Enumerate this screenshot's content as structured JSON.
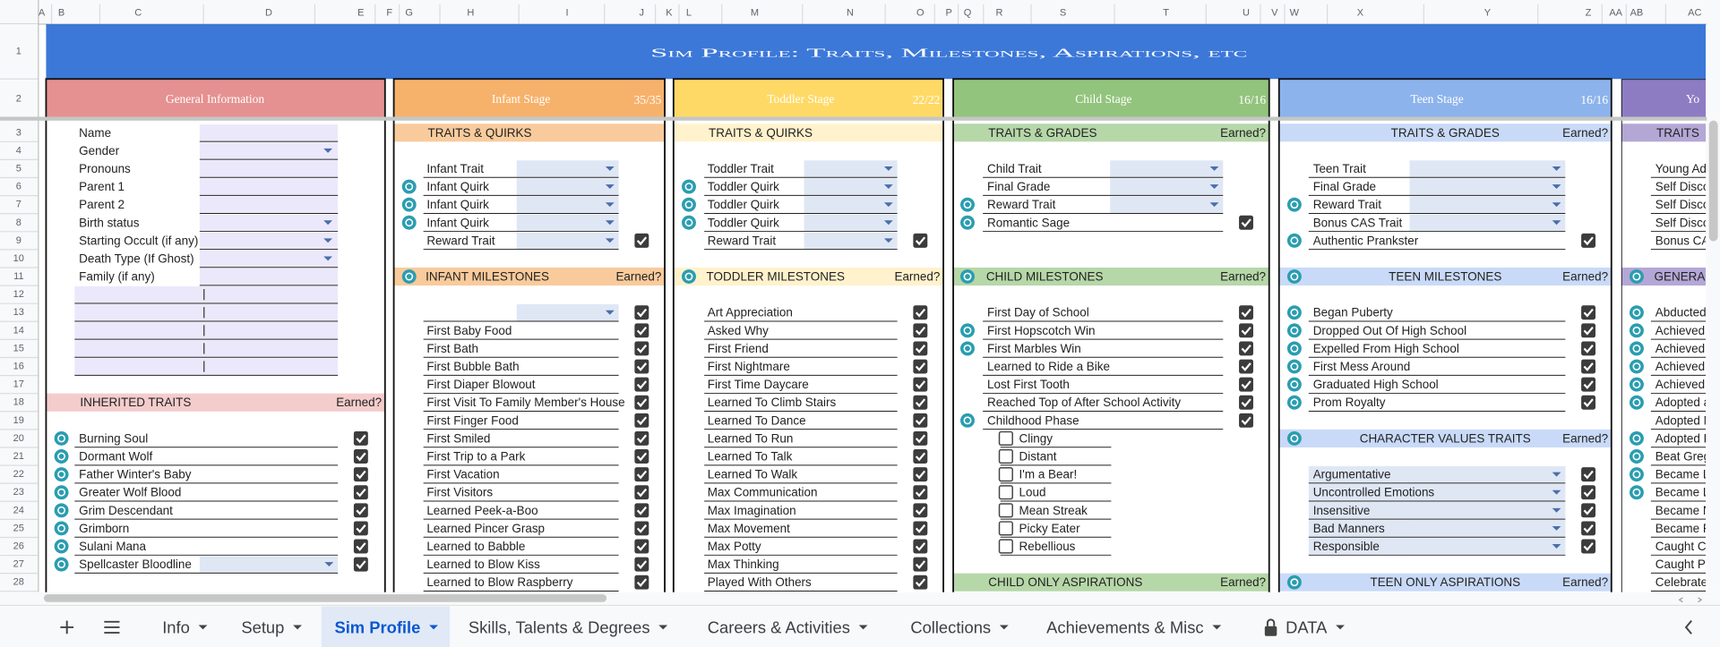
{
  "column_headers": [
    "A",
    "B",
    "C",
    "D",
    "E",
    "F",
    "G",
    "H",
    "I",
    "J",
    "K",
    "L",
    "M",
    "N",
    "O",
    "P",
    "Q",
    "R",
    "S",
    "T",
    "U",
    "V",
    "W",
    "X",
    "Y",
    "Z",
    "AA",
    "AB",
    "AC"
  ],
  "row_numbers": [
    1,
    2,
    3,
    4,
    5,
    6,
    7,
    8,
    9,
    10,
    11,
    12,
    13,
    14,
    15,
    16,
    17,
    18,
    19,
    20,
    21,
    22,
    23,
    24,
    25,
    26,
    27,
    28
  ],
  "title": "Sim Profile: Traits, Milestones, Aspirations, etc",
  "title_color": "#3c78d8",
  "general": {
    "title": "General Information",
    "color": "#e69191",
    "light_color": "#f4cccc",
    "fields": [
      {
        "label": "Name"
      },
      {
        "label": "Gender",
        "dropdown": true
      },
      {
        "label": "Pronouns"
      },
      {
        "label": "Parent 1"
      },
      {
        "label": "Parent 2"
      },
      {
        "label": "Birth status",
        "dropdown": true
      },
      {
        "label": "Starting Occult (if any)",
        "dropdown": true
      },
      {
        "label": "Death Type (If Ghost)",
        "dropdown": true
      },
      {
        "label": "Family (if any)"
      }
    ],
    "inherited": {
      "header": "INHERITED TRAITS",
      "earned": "Earned?",
      "items": [
        {
          "label": "Burning Soul",
          "icon": true,
          "checked": true
        },
        {
          "label": "Dormant Wolf",
          "icon": true,
          "checked": true
        },
        {
          "label": "Father Winter's Baby",
          "icon": true,
          "checked": true
        },
        {
          "label": "Greater Wolf Blood",
          "icon": true,
          "checked": true
        },
        {
          "label": "Grim Descendant",
          "icon": true,
          "checked": true
        },
        {
          "label": "Grimborn",
          "icon": true,
          "checked": true
        },
        {
          "label": "Sulani Mana",
          "icon": true,
          "checked": true
        },
        {
          "label": "Spellcaster Bloodline",
          "icon": true,
          "dropdown": true,
          "checked": true
        }
      ]
    }
  },
  "stages": [
    {
      "title": "Infant Stage",
      "count": "35/35",
      "color": "#f6b26b",
      "light_color": "#f9cb9c",
      "traits": {
        "header": "TRAITS & QUIRKS",
        "items": [
          {
            "label": "Infant Trait",
            "dropdown": true
          },
          {
            "label": "Infant Quirk",
            "icon": true,
            "dropdown": true
          },
          {
            "label": "Infant Quirk",
            "icon": true,
            "dropdown": true
          },
          {
            "label": "Infant Quirk",
            "icon": true,
            "dropdown": true
          },
          {
            "label": "Reward Trait",
            "dropdown": true,
            "checked": true
          }
        ]
      },
      "milestones": {
        "header": "INFANT MILESTONES",
        "earned": "Earned?",
        "icon": true,
        "items": [
          {
            "dropdown": true,
            "checked": true
          },
          {
            "label": "First Baby Food",
            "checked": true
          },
          {
            "label": "First Bath",
            "checked": true
          },
          {
            "label": "First Bubble Bath",
            "checked": true
          },
          {
            "label": "First Diaper Blowout",
            "checked": true
          },
          {
            "label": "First Visit To Family Member's House",
            "checked": true
          },
          {
            "label": "First Finger Food",
            "checked": true
          },
          {
            "label": "First Smiled",
            "checked": true
          },
          {
            "label": "First Trip to a Park",
            "checked": true
          },
          {
            "label": "First Vacation",
            "checked": true
          },
          {
            "label": "First Visitors",
            "checked": true
          },
          {
            "label": "Learned Peek-a-Boo",
            "checked": true
          },
          {
            "label": "Learned Pincer Grasp",
            "checked": true
          },
          {
            "label": "Learned to Babble",
            "checked": true
          },
          {
            "label": "Learned to Blow Kiss",
            "checked": true
          },
          {
            "label": "Learned to Blow Raspberry",
            "checked": true
          }
        ]
      }
    },
    {
      "title": "Toddler Stage",
      "count": "22/22",
      "color": "#ffd966",
      "light_color": "#fff2cc",
      "traits": {
        "header": "TRAITS & QUIRKS",
        "items": [
          {
            "label": "Toddler Trait",
            "dropdown": true
          },
          {
            "label": "Toddler Quirk",
            "icon": true,
            "dropdown": true
          },
          {
            "label": "Toddler Quirk",
            "icon": true,
            "dropdown": true
          },
          {
            "label": "Toddler Quirk",
            "icon": true,
            "dropdown": true
          },
          {
            "label": "Reward Trait",
            "dropdown": true,
            "checked": true
          }
        ]
      },
      "milestones": {
        "header": "TODDLER MILESTONES",
        "earned": "Earned?",
        "icon": true,
        "items": [
          {
            "label": "Art Appreciation",
            "checked": true
          },
          {
            "label": "Asked Why",
            "checked": true
          },
          {
            "label": "First Friend",
            "checked": true
          },
          {
            "label": "First Nightmare",
            "checked": true
          },
          {
            "label": "First Time Daycare",
            "checked": true
          },
          {
            "label": "Learned To Climb Stairs",
            "checked": true
          },
          {
            "label": "Learned To Dance",
            "checked": true
          },
          {
            "label": "Learned To Run",
            "checked": true
          },
          {
            "label": "Learned To Talk",
            "checked": true
          },
          {
            "label": "Learned To Walk",
            "checked": true
          },
          {
            "label": "Max Communication",
            "checked": true
          },
          {
            "label": "Max Imagination",
            "checked": true
          },
          {
            "label": "Max Movement",
            "checked": true
          },
          {
            "label": "Max Potty",
            "checked": true
          },
          {
            "label": "Max Thinking",
            "checked": true
          },
          {
            "label": "Played With Others",
            "checked": true
          }
        ]
      }
    },
    {
      "title": "Child Stage",
      "count": "16/16",
      "color": "#93c47d",
      "light_color": "#b6d7a8",
      "traits": {
        "header": "TRAITS & GRADES",
        "earned": "Earned?",
        "items": [
          {
            "label": "Child Trait",
            "dropdown": true
          },
          {
            "label": "Final Grade",
            "dropdown": true
          },
          {
            "label": "Reward Trait",
            "icon": true,
            "dropdown": true
          },
          {
            "label": "Romantic Sage",
            "icon": true,
            "checked": true
          }
        ]
      },
      "milestones": {
        "header": "CHILD MILESTONES",
        "earned": "Earned?",
        "icon": true,
        "items": [
          {
            "label": "First Day of School",
            "checked": true
          },
          {
            "label": "First Hopscotch Win",
            "icon": true,
            "checked": true
          },
          {
            "label": "First Marbles Win",
            "icon": true,
            "checked": true
          },
          {
            "label": "Learned to Ride a Bike",
            "checked": true
          },
          {
            "label": "Lost First Tooth",
            "checked": true
          },
          {
            "label": "Reached Top of After School Activity",
            "checked": true
          },
          {
            "label": "Childhood Phase",
            "icon": true,
            "checked": true
          }
        ]
      },
      "phases": {
        "items": [
          {
            "label": "Clingy",
            "checked": false
          },
          {
            "label": "Distant",
            "checked": false
          },
          {
            "label": "I'm a Bear!",
            "checked": false
          },
          {
            "label": "Loud",
            "checked": false
          },
          {
            "label": "Mean Streak",
            "checked": false
          },
          {
            "label": "Picky Eater",
            "checked": false
          },
          {
            "label": "Rebellious",
            "checked": false
          }
        ]
      },
      "aspirations": {
        "header": "CHILD ONLY ASPIRATIONS",
        "earned": "Earned?"
      }
    },
    {
      "title": "Teen Stage",
      "count": "16/16",
      "color": "#8db3ec",
      "light_color": "#c9daf8",
      "traits": {
        "header": "TRAITS & GRADES",
        "earned": "Earned?",
        "items": [
          {
            "label": "Teen Trait",
            "dropdown": true
          },
          {
            "label": "Final Grade",
            "dropdown": true
          },
          {
            "label": "Reward Trait",
            "icon": true,
            "dropdown": true
          },
          {
            "label": "Bonus CAS Trait",
            "dropdown": true
          },
          {
            "label": "Authentic Prankster",
            "icon": true,
            "checked": true
          }
        ]
      },
      "milestones": {
        "header": "TEEN MILESTONES",
        "earned": "Earned?",
        "icon": true,
        "items": [
          {
            "label": "Began Puberty",
            "icon": true,
            "checked": true
          },
          {
            "label": "Dropped Out Of High School",
            "icon": true,
            "checked": true
          },
          {
            "label": "Expelled From High School",
            "icon": true,
            "checked": true
          },
          {
            "label": "First Mess Around",
            "icon": true,
            "checked": true
          },
          {
            "label": "Graduated High School",
            "icon": true,
            "checked": true
          },
          {
            "label": "Prom Royalty",
            "icon": true,
            "checked": true
          }
        ]
      },
      "values": {
        "header": "CHARACTER VALUES TRAITS",
        "earned": "Earned?",
        "icon": true,
        "items": [
          {
            "label": "Argumentative",
            "dropdown": true,
            "filled": true,
            "checked": true
          },
          {
            "label": "Uncontrolled Emotions",
            "dropdown": true,
            "filled": true,
            "checked": true
          },
          {
            "label": "Insensitive",
            "dropdown": true,
            "filled": true,
            "checked": true
          },
          {
            "label": "Bad Manners",
            "dropdown": true,
            "filled": true,
            "checked": true
          },
          {
            "label": "Responsible",
            "dropdown": true,
            "filled": true,
            "checked": true
          }
        ]
      },
      "aspirations": {
        "header": "TEEN ONLY ASPIRATIONS",
        "earned": "Earned?",
        "icon": true
      }
    },
    {
      "title": "Yo",
      "color": "#8e7cc3",
      "light_color": "#b4a7d6",
      "traits": {
        "header": "TRAITS",
        "items": [
          {
            "label": "Young Adu"
          },
          {
            "label": "Self Discov"
          },
          {
            "label": "Self Discov"
          },
          {
            "label": "Self Discov"
          },
          {
            "label": "Bonus CAS"
          }
        ]
      },
      "milestones": {
        "header": "GENERAL",
        "icon": true,
        "items": [
          {
            "label": "Abducted",
            "icon": true
          },
          {
            "label": "Achieved a",
            "icon": true
          },
          {
            "label": "Achieved a",
            "icon": true
          },
          {
            "label": "Achieved I",
            "icon": true
          },
          {
            "label": "Achieved I",
            "icon": true
          },
          {
            "label": "Adopted a",
            "icon": true
          },
          {
            "label": "Adopted N"
          },
          {
            "label": "Adopted P",
            "icon": true
          },
          {
            "label": "Beat Greg",
            "icon": true
          },
          {
            "label": "Became Le",
            "icon": true
          },
          {
            "label": "Became Le",
            "icon": true
          },
          {
            "label": "Became N"
          },
          {
            "label": "Became Pl"
          },
          {
            "label": "Caught Ch"
          },
          {
            "label": "Caught Pa"
          },
          {
            "label": "Celebrate"
          }
        ]
      }
    }
  ],
  "tabs": [
    {
      "label": "Info"
    },
    {
      "label": "Setup"
    },
    {
      "label": "Sim Profile",
      "active": true
    },
    {
      "label": "Skills, Talents & Degrees"
    },
    {
      "label": "Careers & Activities"
    },
    {
      "label": "Collections"
    },
    {
      "label": "Achievements & Misc"
    },
    {
      "label": "DATA",
      "locked": true
    }
  ]
}
